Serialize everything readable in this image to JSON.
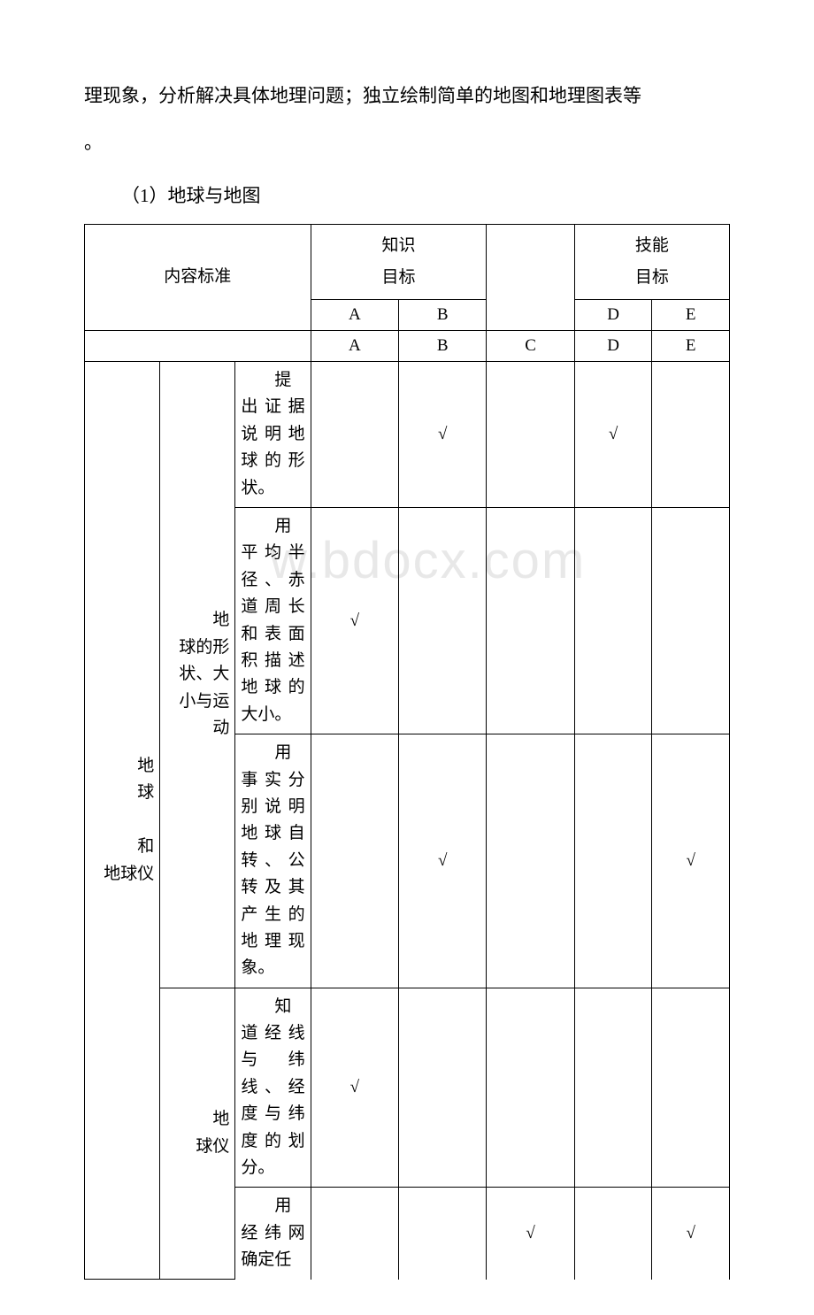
{
  "intro": {
    "line1": "理现象，分析解决具体地理问题；独立绘制简单的地图和地理图表等",
    "line2": "。"
  },
  "section_title": "（1）地球与地图",
  "table": {
    "header": {
      "content_label": "内容标准",
      "knowledge_label_l1": "知识",
      "knowledge_label_l2": "目标",
      "skill_label_l1": "技能",
      "skill_label_l2": "目标",
      "col_a": "A",
      "col_b": "B",
      "col_c": "C",
      "col_d": "D",
      "col_e": "E"
    },
    "category1": "地球",
    "category1_line2": "和地球仪",
    "subcat1": "地球的形状、大小与运动",
    "subcat2": "地球仪",
    "rows": [
      {
        "desc_indent": "提",
        "desc_rest": "出证据说明地球的形状。",
        "a": "",
        "b": "√",
        "c": "",
        "d": "√",
        "e": ""
      },
      {
        "desc_indent": "用",
        "desc_rest": "平均半径、赤道周长和表面积描述地球的大小。",
        "a": "√",
        "b": "",
        "c": "",
        "d": "",
        "e": ""
      },
      {
        "desc_indent": "用",
        "desc_rest": "事实分别说明地球自转、公转及其产生的地理现象。",
        "a": "",
        "b": "√",
        "c": "",
        "d": "",
        "e": "√"
      },
      {
        "desc_indent": "知",
        "desc_rest": "道经线与纬线、经度与纬度的划分。",
        "a": "√",
        "b": "",
        "c": "",
        "d": "",
        "e": ""
      },
      {
        "desc_indent": "用",
        "desc_rest": "经纬网确定任",
        "a": "",
        "b": "",
        "c": "√",
        "d": "",
        "e": "√"
      }
    ]
  },
  "watermark_text": "w.bdocx.com",
  "colors": {
    "text": "#000000",
    "background": "#ffffff",
    "border": "#000000",
    "watermark": "#e8e8e8"
  }
}
